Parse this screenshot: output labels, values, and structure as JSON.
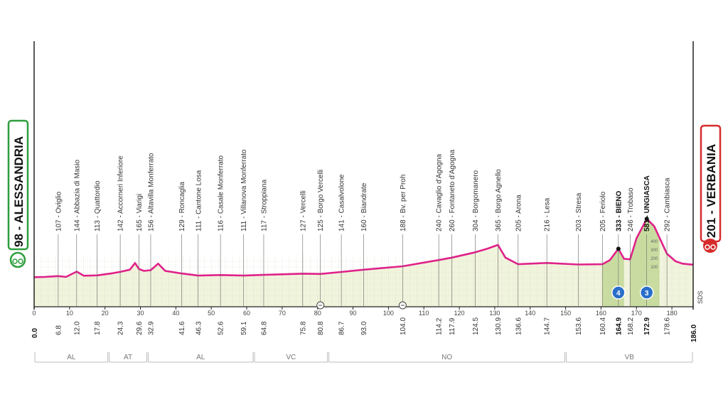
{
  "chart_data": {
    "type": "area",
    "xlim": [
      0,
      186
    ],
    "x_ticks": [
      0,
      10,
      20,
      30,
      40,
      50,
      60,
      70,
      80,
      90,
      100,
      110,
      120,
      130,
      140,
      150,
      160,
      170,
      180
    ],
    "colors": {
      "line": "#e0218a",
      "fill": "#f1f4dc",
      "climb": "#c9dca0",
      "start": "#2e9e3e",
      "finish": "#d62b2b",
      "kom": "#2a6fc9"
    },
    "start": {
      "label": "98 - ALESSANDRIA",
      "km": "0.0"
    },
    "finish": {
      "label": "201 - VERBANIA",
      "km": "186.0"
    },
    "sds": "SDS",
    "profile": [
      {
        "x": 0,
        "y": 98
      },
      {
        "x": 3,
        "y": 100
      },
      {
        "x": 6.8,
        "y": 107
      },
      {
        "x": 9,
        "y": 100
      },
      {
        "x": 12,
        "y": 144
      },
      {
        "x": 14,
        "y": 110
      },
      {
        "x": 17.8,
        "y": 113
      },
      {
        "x": 22,
        "y": 130
      },
      {
        "x": 24.3,
        "y": 142
      },
      {
        "x": 27,
        "y": 160
      },
      {
        "x": 28.5,
        "y": 215
      },
      {
        "x": 29.6,
        "y": 165
      },
      {
        "x": 31,
        "y": 150
      },
      {
        "x": 32.9,
        "y": 156
      },
      {
        "x": 35,
        "y": 210
      },
      {
        "x": 37,
        "y": 150
      },
      {
        "x": 41.6,
        "y": 129
      },
      {
        "x": 46.3,
        "y": 111
      },
      {
        "x": 52.6,
        "y": 116
      },
      {
        "x": 59.1,
        "y": 111
      },
      {
        "x": 64.8,
        "y": 117
      },
      {
        "x": 75.8,
        "y": 127
      },
      {
        "x": 80.8,
        "y": 125
      },
      {
        "x": 86.7,
        "y": 141
      },
      {
        "x": 93,
        "y": 160
      },
      {
        "x": 104,
        "y": 188
      },
      {
        "x": 114.2,
        "y": 240
      },
      {
        "x": 117.9,
        "y": 260
      },
      {
        "x": 124.5,
        "y": 304
      },
      {
        "x": 128,
        "y": 335
      },
      {
        "x": 130.9,
        "y": 365
      },
      {
        "x": 133,
        "y": 260
      },
      {
        "x": 136.6,
        "y": 205
      },
      {
        "x": 144.7,
        "y": 216
      },
      {
        "x": 153.6,
        "y": 203
      },
      {
        "x": 160.4,
        "y": 205
      },
      {
        "x": 162.5,
        "y": 240
      },
      {
        "x": 164.9,
        "y": 333
      },
      {
        "x": 166.5,
        "y": 250
      },
      {
        "x": 168.2,
        "y": 246
      },
      {
        "x": 170,
        "y": 420
      },
      {
        "x": 172.9,
        "y": 581
      },
      {
        "x": 175,
        "y": 520
      },
      {
        "x": 178.6,
        "y": 292
      },
      {
        "x": 181,
        "y": 230
      },
      {
        "x": 183,
        "y": 210
      },
      {
        "x": 186,
        "y": 201
      }
    ],
    "places": [
      {
        "x": 6.8,
        "km": "6.8",
        "label": "107 - Oviglio"
      },
      {
        "x": 12.0,
        "km": "12.0",
        "label": "144 - Abbazia di Masio"
      },
      {
        "x": 17.8,
        "km": "17.8",
        "label": "113 - Quattordio"
      },
      {
        "x": 24.3,
        "km": "24.3",
        "label": "142 - Accorneri Inferiore"
      },
      {
        "x": 29.6,
        "km": "29.6",
        "label": "165 - Viarigi"
      },
      {
        "x": 32.9,
        "km": "32.9",
        "label": "156 - Altavilla Monferrato"
      },
      {
        "x": 41.6,
        "km": "41.6",
        "label": "129 - Roncaglia"
      },
      {
        "x": 46.3,
        "km": "46.3",
        "label": "111 - Cantone Losa"
      },
      {
        "x": 52.6,
        "km": "52.6",
        "label": "116 - Casale Monferrato"
      },
      {
        "x": 59.1,
        "km": "59.1",
        "label": "111 - Villanova Monferrato"
      },
      {
        "x": 64.8,
        "km": "64.8",
        "label": "117 - Stroppiana"
      },
      {
        "x": 75.8,
        "km": "75.8",
        "label": "127 - Vercelli"
      },
      {
        "x": 80.8,
        "km": "80.8",
        "label": "125 - Borgo Vercelli"
      },
      {
        "x": 86.7,
        "km": "86.7",
        "label": "141 - Casalvolone"
      },
      {
        "x": 93.0,
        "km": "93.0",
        "label": "160 - Biandrate"
      },
      {
        "x": 104.0,
        "km": "104.0",
        "label": "188 - Bv. per Proh"
      },
      {
        "x": 114.2,
        "km": "114.2",
        "label": "240 - Cavaglio d'Agogna"
      },
      {
        "x": 117.9,
        "km": "117.9",
        "label": "260 - Fontaneto d'Agogna"
      },
      {
        "x": 124.5,
        "km": "124.5",
        "label": "304 - Borgomanero"
      },
      {
        "x": 130.9,
        "km": "130.9",
        "label": "365 - Borgo Agnello"
      },
      {
        "x": 136.6,
        "km": "136.6",
        "label": "205 - Arona"
      },
      {
        "x": 144.7,
        "km": "144.7",
        "label": "216 - Lesa"
      },
      {
        "x": 153.6,
        "km": "153.6",
        "label": "203 - Stresa"
      },
      {
        "x": 160.4,
        "km": "160.4",
        "label": "205 - Feriolo"
      },
      {
        "x": 164.9,
        "km": "164.9",
        "label": "333 - BIENO",
        "bold": true,
        "kom": "4"
      },
      {
        "x": 168.2,
        "km": "168.2",
        "label": "246 - Trobaso"
      },
      {
        "x": 172.9,
        "km": "172.9",
        "label": "581 - UNGIASCA",
        "bold": true,
        "kom": "3"
      },
      {
        "x": 178.6,
        "km": "178.6",
        "label": "292 - Cambiasca"
      }
    ],
    "climb_zones": [
      [
        160.4,
        166.5
      ],
      [
        168.2,
        176.5
      ]
    ],
    "climb_ticks": [
      "400",
      "300",
      "200",
      "100"
    ],
    "sprints": [
      80.8,
      104.0
    ],
    "provinces": [
      {
        "label": "AL",
        "from": 0,
        "to": 21
      },
      {
        "label": "AT",
        "from": 21,
        "to": 32
      },
      {
        "label": "AL",
        "from": 32,
        "to": 62
      },
      {
        "label": "VC",
        "from": 62,
        "to": 83
      },
      {
        "label": "NO",
        "from": 83,
        "to": 150
      },
      {
        "label": "VB",
        "from": 150,
        "to": 186
      }
    ]
  }
}
